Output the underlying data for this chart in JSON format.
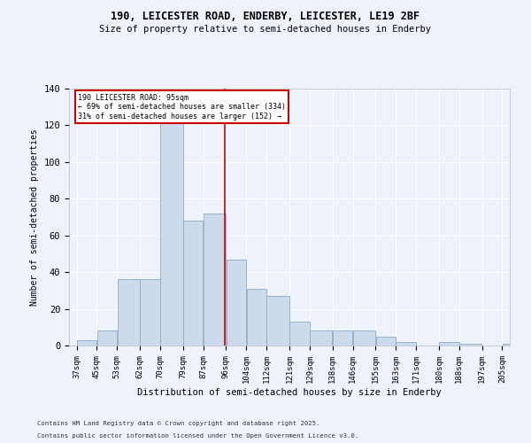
{
  "title1": "190, LEICESTER ROAD, ENDERBY, LEICESTER, LE19 2BF",
  "title2": "Size of property relative to semi-detached houses in Enderby",
  "xlabel": "Distribution of semi-detached houses by size in Enderby",
  "ylabel": "Number of semi-detached properties",
  "footnote1": "Contains HM Land Registry data © Crown copyright and database right 2025.",
  "footnote2": "Contains public sector information licensed under the Open Government Licence v3.0.",
  "annotation_line1": "190 LEICESTER ROAD: 95sqm",
  "annotation_line2": "← 69% of semi-detached houses are smaller (334)",
  "annotation_line3": "31% of semi-detached houses are larger (152) →",
  "bar_color": "#ccdaeb",
  "bar_edge_color": "#8aaac8",
  "vline_color": "#cc0000",
  "vline_x": 95.5,
  "categories": [
    "37sqm",
    "45sqm",
    "53sqm",
    "62sqm",
    "70sqm",
    "79sqm",
    "87sqm",
    "96sqm",
    "104sqm",
    "112sqm",
    "121sqm",
    "129sqm",
    "138sqm",
    "146sqm",
    "155sqm",
    "163sqm",
    "171sqm",
    "180sqm",
    "188sqm",
    "197sqm",
    "205sqm"
  ],
  "bin_edges": [
    37,
    45,
    53,
    62,
    70,
    79,
    87,
    96,
    104,
    112,
    121,
    129,
    138,
    146,
    155,
    163,
    171,
    180,
    188,
    197,
    205
  ],
  "values": [
    3,
    8,
    36,
    36,
    125,
    68,
    72,
    47,
    31,
    27,
    13,
    8,
    8,
    8,
    5,
    2,
    0,
    2,
    1,
    0,
    1
  ],
  "ylim": [
    0,
    140
  ],
  "yticks": [
    0,
    20,
    40,
    60,
    80,
    100,
    120,
    140
  ],
  "background_color": "#eef2fb",
  "grid_color": "#ffffff",
  "annotation_box_color": "#ffffff",
  "annotation_box_edge": "#cc0000"
}
